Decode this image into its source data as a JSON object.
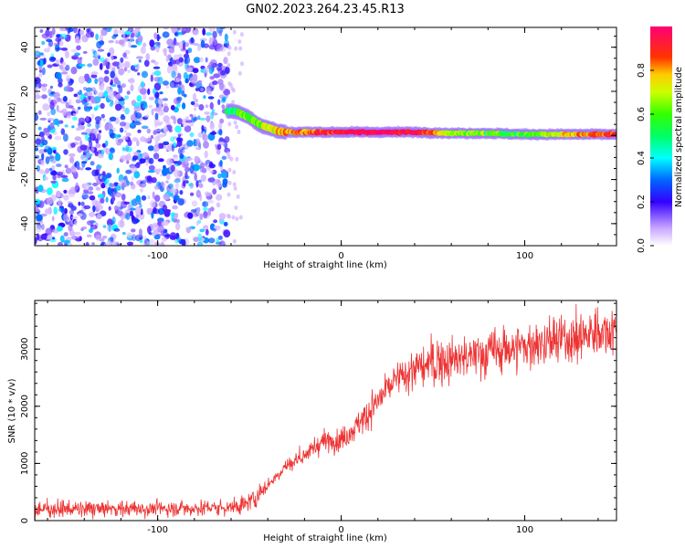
{
  "title": "GN02.2023.264.23.45.R13",
  "chart_data": [
    {
      "type": "heatmap",
      "xlabel": "Height of straight line (km)",
      "ylabel": "Frequency (Hz)",
      "xlim": [
        -167,
        150
      ],
      "ylim": [
        -50,
        49
      ],
      "xticks": [
        -100,
        0,
        100
      ],
      "yticks": [
        -40,
        -20,
        0,
        20,
        40
      ],
      "colorbar": {
        "label": "Normalized spectral amplitude",
        "range": [
          0,
          1
        ],
        "ticks": [
          "0.0",
          "0.2",
          "0.4",
          "0.6",
          "0.8"
        ]
      },
      "noise_region": {
        "x_range": [
          -167,
          -62
        ],
        "f_range": [
          -50,
          49
        ],
        "amplitude_range": [
          0.05,
          0.4
        ]
      },
      "ridge": {
        "height_km": [
          -62,
          -58,
          -55,
          -52,
          -48,
          -45,
          -42,
          -38,
          -35,
          -30,
          -20,
          -10,
          0,
          20,
          40,
          60,
          80,
          100,
          120,
          150
        ],
        "frequency_hz": [
          11,
          11,
          10,
          9,
          7,
          5,
          4,
          3,
          2,
          1.5,
          1.5,
          1.5,
          1.5,
          1.5,
          1.5,
          1,
          1,
          0.5,
          0.5,
          0.5
        ],
        "amplitude": [
          0.45,
          0.5,
          0.55,
          0.6,
          0.65,
          0.65,
          0.7,
          0.7,
          0.75,
          0.8,
          0.85,
          0.9,
          0.95,
          1.0,
          0.95,
          0.7,
          0.6,
          0.55,
          0.75,
          0.9
        ]
      }
    },
    {
      "type": "line",
      "xlabel": "Height of straight line (km)",
      "ylabel": "SNR (10 * v/v)",
      "xlim": [
        -167,
        150
      ],
      "ylim": [
        0,
        3850
      ],
      "xticks": [
        -100,
        0,
        100
      ],
      "yticks": [
        0,
        1000,
        2000,
        3000
      ],
      "color": "#ee3333",
      "series": [
        {
          "x": [
            -167,
            -140,
            -120,
            -100,
            -80,
            -60,
            -55,
            -50,
            -45,
            -40,
            -35,
            -30,
            -25,
            -20,
            -15,
            -10,
            -5,
            0,
            5,
            10,
            15,
            20,
            25,
            30,
            40,
            50,
            60,
            70,
            80,
            90,
            100,
            110,
            120,
            130,
            140,
            150
          ],
          "y": [
            200,
            200,
            210,
            210,
            220,
            230,
            260,
            330,
            450,
            620,
            800,
            950,
            1050,
            1150,
            1250,
            1380,
            1400,
            1430,
            1550,
            1700,
            1900,
            2100,
            2300,
            2450,
            2650,
            2750,
            2800,
            2850,
            2950,
            3000,
            3050,
            3100,
            3150,
            3200,
            3300,
            3380
          ]
        }
      ]
    }
  ]
}
